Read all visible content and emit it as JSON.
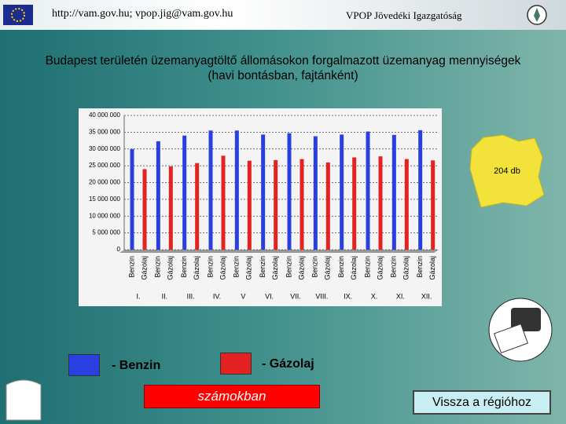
{
  "header": {
    "contact": "http://vam.gov.hu; vpop.jig@vam.gov.hu",
    "organization": "VPOP Jövedéki Igazgatóság"
  },
  "title_lines": [
    "Budapest területén üzemanyagtöltő állomásokon forgalmazott üzemanyag mennyiségek",
    "(havi bontásban, fajtánként)"
  ],
  "map_label": "204 db",
  "legend": [
    "- Benzin",
    "- Gázolaj"
  ],
  "buttons": [
    "számokban",
    "Vissza a régióhoz"
  ],
  "chart_data": {
    "type": "bar",
    "categories": [
      "I.",
      "II.",
      "III.",
      "IV.",
      "V",
      "VI.",
      "VII.",
      "VIII.",
      "IX.",
      "X.",
      "XI.",
      "XII."
    ],
    "series": [
      {
        "name": "Benzin",
        "color": "#2a3fe0",
        "values": [
          30000000,
          32300000,
          34000000,
          35500000,
          35500000,
          34300000,
          34700000,
          33800000,
          34300000,
          35200000,
          34200000,
          35600000
        ]
      },
      {
        "name": "Gázolaj",
        "color": "#e52222",
        "values": [
          24000000,
          24800000,
          25800000,
          28000000,
          26500000,
          26700000,
          27000000,
          26000000,
          27500000,
          27800000,
          27000000,
          26600000
        ]
      }
    ],
    "ylim": [
      0,
      40000000
    ],
    "yticks": [
      0,
      {
        "value": 5000000,
        "label": "5 000 000"
      },
      {
        "value": 10000000,
        "label": "10 000 000"
      },
      {
        "value": 15000000,
        "label": "15 000 000"
      },
      {
        "value": 20000000,
        "label": "20 000 000"
      },
      {
        "value": 25000000,
        "label": "25 000 000"
      },
      {
        "value": 30000000,
        "label": "30 000 000"
      },
      {
        "value": 35000000,
        "label": "35 000 000"
      },
      {
        "value": 40000000,
        "label": "40 000 000"
      }
    ],
    "grid": true
  }
}
